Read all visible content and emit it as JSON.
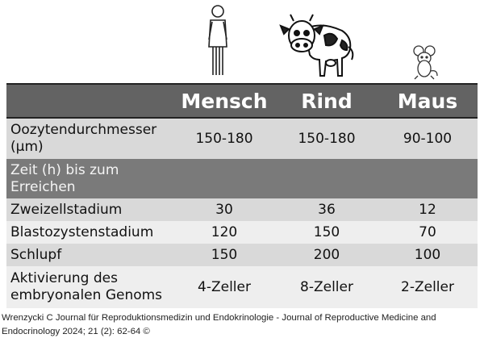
{
  "columns": [
    "Mensch",
    "Rind",
    "Maus"
  ],
  "rows": [
    {
      "label": "Oozytendurchmesser (µm)",
      "values": [
        "150-180",
        "150-180",
        "90-100"
      ]
    },
    {
      "label": "Zeit (h) bis zum Erreichen",
      "values": [
        "",
        "",
        ""
      ]
    },
    {
      "label": "Zweizellstadium",
      "values": [
        "30",
        "36",
        "12"
      ]
    },
    {
      "label": "Blastozystenstadium",
      "values": [
        "120",
        "150",
        "70"
      ]
    },
    {
      "label": "Schlupf",
      "values": [
        "150",
        "200",
        "100"
      ]
    },
    {
      "label": "Aktivierung des embryonalen Genoms",
      "values": [
        "4-Zeller",
        "8-Zeller",
        "2-Zeller"
      ]
    }
  ],
  "icons": [
    "human-figure-icon",
    "cow-icon",
    "mouse-icon"
  ],
  "colors": {
    "header_bg": "#636363",
    "row_gray": "#d9d9d9",
    "row_light": "#eeeeee",
    "section_bg": "#7a7a7a"
  },
  "credit": "Wrenzycki C Journal für Reproduktionsmedizin und Endokrinologie - Journal of Reproductive Medicine and Endocrinology 2024; 21 (2): 62-64 ©"
}
